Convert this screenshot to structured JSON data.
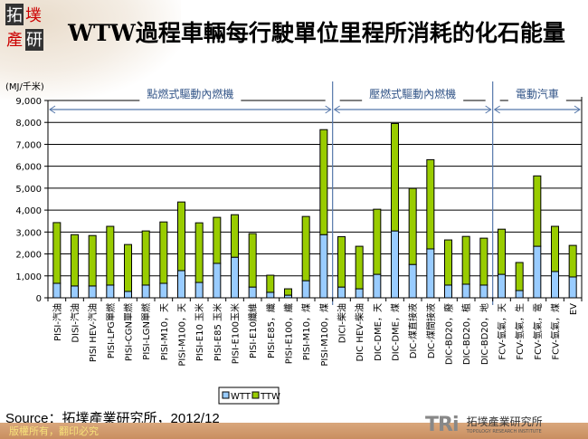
{
  "header": {
    "logo_text": "拓墣產研",
    "title": "WTW過程車輛每行駛單位里程所消耗的化石能量"
  },
  "chart_data": {
    "type": "bar",
    "stacked": true,
    "title": "WTW過程車輛每行駛單位里程所消耗的化石能量",
    "ylabel": "(MJ/千米)",
    "ylim": [
      0,
      9000
    ],
    "yticks": [
      0,
      1000,
      2000,
      3000,
      4000,
      5000,
      6000,
      7000,
      8000,
      9000
    ],
    "ytick_labels": [
      "0",
      "1,000",
      "2,000",
      "3,000",
      "4,000",
      "5,000",
      "6,000",
      "7,000",
      "8,000",
      "9,000"
    ],
    "grid": true,
    "legend": "bottom-center",
    "groups": [
      {
        "label": "點燃式驅動內燃機",
        "count": 16
      },
      {
        "label": "壓燃式驅動內燃機",
        "count": 9
      },
      {
        "label": "電動汽車",
        "count": 5
      }
    ],
    "categories": [
      "PISI-汽油",
      "DISI-汽油",
      "PISI HEV-汽油",
      "PISI-LPG單燃",
      "PISI-CGN單燃",
      "PISI-LGN單燃",
      "PISI-M10，天",
      "PISI-M100，天",
      "PISI-E10 玉米",
      "PISI-E85 玉米",
      "PISI-E100玉米",
      "PISI-E10纖維",
      "PISI-E85，纖",
      "PISI-E100，纖",
      "PISI-M10，煤",
      "PISI-M100，煤",
      "DICI-柴油",
      "DIC HEV-柴油",
      "DIC-DME，天",
      "DIC-DME，煤",
      "DIC-煤直接液",
      "DIC-煤間接液",
      "DIC-BD20，廢",
      "DIC-BD20，植",
      "DIC-BD20，地",
      "FCV-氫氣，天",
      "FCV-氫氣，生",
      "FCV-氫氣，電",
      "FCV-氫氣，煤",
      "EV"
    ],
    "series": [
      {
        "name": "WTT",
        "color": "#99ccff",
        "values": [
          660,
          540,
          540,
          580,
          290,
          580,
          660,
          1240,
          700,
          1570,
          1850,
          490,
          250,
          120,
          780,
          2880,
          490,
          410,
          1070,
          3050,
          1520,
          2230,
          580,
          620,
          580,
          1070,
          330,
          2350,
          1200,
          950
        ]
      },
      {
        "name": "TTW",
        "color": "#99cc00",
        "values": [
          2770,
          2340,
          2300,
          2680,
          2140,
          2470,
          2800,
          3130,
          2720,
          2100,
          1940,
          2440,
          780,
          290,
          2930,
          4790,
          2300,
          1940,
          2970,
          4900,
          3470,
          4070,
          2060,
          2180,
          2140,
          2060,
          1280,
          3210,
          2060,
          1440
        ]
      }
    ]
  },
  "source": "Source：拓墣產業研究所，2012/12",
  "footer": {
    "copyright": "版權所有，翻印必究",
    "brand": "TRi",
    "brand_cn": "拓墣產業研究所",
    "brand_en": "TOPOLOGY RESEARCH INSTITUTE"
  }
}
